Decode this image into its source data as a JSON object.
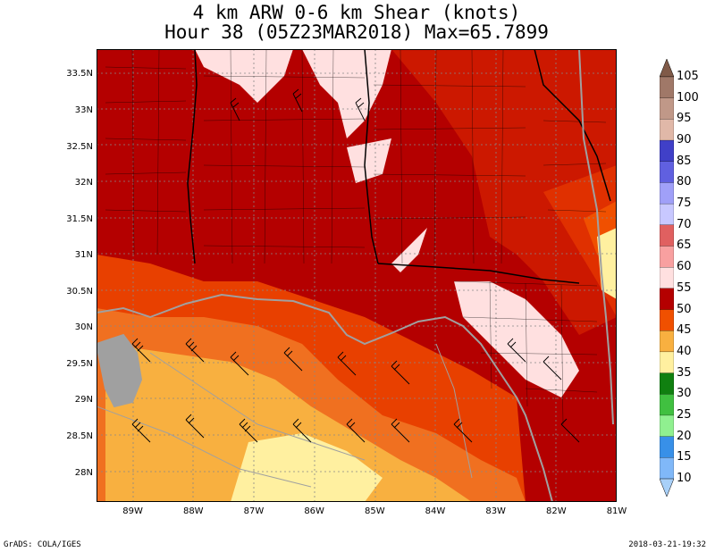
{
  "title": {
    "line1": "4 km ARW 0-6 km Shear (knots)",
    "line2": "Hour 38 (05Z23MAR2018) Max=65.7899"
  },
  "axes": {
    "lat_labels": [
      "33.5N",
      "33N",
      "32.5N",
      "32N",
      "31.5N",
      "31N",
      "30.5N",
      "30N",
      "29.5N",
      "29N",
      "28.5N",
      "28N"
    ],
    "lat_values": [
      33.5,
      33,
      32.5,
      32,
      31.5,
      31,
      30.5,
      30,
      29.5,
      29,
      28.5,
      28
    ],
    "lon_labels": [
      "89W",
      "88W",
      "87W",
      "86W",
      "85W",
      "84W",
      "83W",
      "82W",
      "81W"
    ],
    "lon_values": [
      -89,
      -88,
      -87,
      -86,
      -85,
      -84,
      -83,
      -82,
      -81
    ],
    "lon_range": [
      -89.6,
      -81.0
    ],
    "lat_range": [
      27.6,
      33.85
    ]
  },
  "colorbar": {
    "levels": [
      "105",
      "100",
      "95",
      "90",
      "85",
      "80",
      "75",
      "70",
      "65",
      "60",
      "55",
      "50",
      "45",
      "40",
      "35",
      "30",
      "25",
      "20",
      "15",
      "10"
    ],
    "colors": [
      "#805a48",
      "#a07868",
      "#c09888",
      "#e0b8a8",
      "#4040c8",
      "#6060e0",
      "#a0a0f8",
      "#c8c8ff",
      "#e06060",
      "#f8a0a0",
      "#ffe0e0",
      "#b40000",
      "#f05000",
      "#f8b040",
      "#fff0a0",
      "#108010",
      "#40c040",
      "#90f090",
      "#3890e8",
      "#80b8f8",
      "#a8d0f8"
    ]
  },
  "footer": {
    "left": "GrADS: COLA/IGES",
    "right": "2018-03-21-19:32"
  }
}
